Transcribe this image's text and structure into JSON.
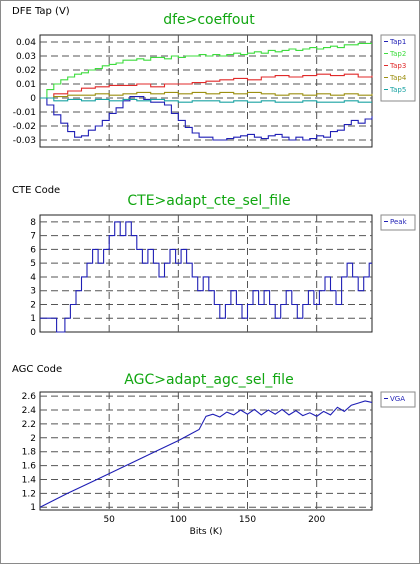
{
  "chart_data": [
    {
      "type": "line",
      "title": "dfe>coeffout",
      "ylabel": "DFE Tap (V)",
      "xlabel": "",
      "xlim": [
        0,
        240
      ],
      "ylim": [
        -0.035,
        0.045
      ],
      "yticks": [
        0.04,
        0.03,
        0.02,
        0.01,
        0,
        -0.01,
        -0.02,
        -0.03
      ],
      "ytick_labels": [
        "0.04",
        "0.03",
        "0.02",
        "0.01",
        "0",
        "-0.01",
        "-0.02",
        "-0.03"
      ],
      "grid": true,
      "step": true,
      "legend_position": "right",
      "series": [
        {
          "name": "Tap1",
          "color": "#1f1fb5",
          "x": [
            0,
            5,
            10,
            15,
            20,
            25,
            30,
            35,
            40,
            45,
            50,
            55,
            60,
            65,
            70,
            75,
            80,
            85,
            90,
            95,
            100,
            105,
            110,
            115,
            120,
            125,
            130,
            135,
            140,
            145,
            150,
            155,
            160,
            165,
            170,
            175,
            180,
            185,
            190,
            195,
            200,
            205,
            210,
            215,
            220,
            225,
            230,
            235,
            240
          ],
          "y": [
            0,
            -0.005,
            -0.012,
            -0.018,
            -0.024,
            -0.028,
            -0.027,
            -0.023,
            -0.02,
            -0.016,
            -0.011,
            -0.007,
            -0.002,
            0.001,
            0.001,
            -0.001,
            -0.003,
            -0.003,
            -0.005,
            -0.011,
            -0.016,
            -0.021,
            -0.025,
            -0.028,
            -0.028,
            -0.03,
            -0.03,
            -0.029,
            -0.028,
            -0.027,
            -0.026,
            -0.028,
            -0.029,
            -0.027,
            -0.026,
            -0.028,
            -0.03,
            -0.028,
            -0.03,
            -0.029,
            -0.027,
            -0.028,
            -0.024,
            -0.023,
            -0.019,
            -0.016,
            -0.018,
            -0.015,
            -0.013
          ]
        },
        {
          "name": "Tap2",
          "color": "#3ddc3d",
          "x": [
            0,
            5,
            10,
            15,
            20,
            25,
            30,
            35,
            40,
            45,
            50,
            55,
            60,
            65,
            70,
            75,
            80,
            85,
            90,
            95,
            100,
            105,
            110,
            115,
            120,
            125,
            130,
            135,
            140,
            145,
            150,
            155,
            160,
            165,
            170,
            175,
            180,
            185,
            190,
            195,
            200,
            205,
            210,
            215,
            220,
            225,
            230,
            235,
            240
          ],
          "y": [
            0,
            0.006,
            0.01,
            0.013,
            0.015,
            0.017,
            0.018,
            0.02,
            0.021,
            0.023,
            0.024,
            0.025,
            0.027,
            0.027,
            0.028,
            0.027,
            0.029,
            0.029,
            0.028,
            0.03,
            0.029,
            0.03,
            0.03,
            0.031,
            0.03,
            0.031,
            0.03,
            0.031,
            0.032,
            0.031,
            0.032,
            0.033,
            0.032,
            0.034,
            0.033,
            0.034,
            0.035,
            0.034,
            0.035,
            0.036,
            0.035,
            0.036,
            0.037,
            0.036,
            0.038,
            0.038,
            0.039,
            0.039,
            0.039
          ]
        },
        {
          "name": "Tap3",
          "color": "#e02a2a",
          "x": [
            0,
            10,
            20,
            30,
            40,
            50,
            60,
            70,
            80,
            90,
            100,
            110,
            120,
            130,
            140,
            150,
            160,
            170,
            180,
            190,
            200,
            210,
            220,
            230,
            240
          ],
          "y": [
            0,
            0.003,
            0.005,
            0.007,
            0.008,
            0.009,
            0.009,
            0.01,
            0.008,
            0.01,
            0.01,
            0.011,
            0.012,
            0.013,
            0.014,
            0.013,
            0.015,
            0.016,
            0.015,
            0.016,
            0.017,
            0.016,
            0.017,
            0.015,
            0.016
          ]
        },
        {
          "name": "Tap4",
          "color": "#9c8f10",
          "x": [
            0,
            10,
            20,
            30,
            40,
            50,
            60,
            70,
            80,
            90,
            100,
            110,
            120,
            130,
            140,
            150,
            160,
            170,
            180,
            190,
            200,
            210,
            220,
            230,
            240
          ],
          "y": [
            0,
            0.001,
            0.002,
            0.002,
            0.003,
            0.002,
            0.003,
            0.004,
            0.003,
            0.004,
            0.003,
            0.004,
            0.003,
            0.004,
            0.003,
            0.004,
            0.003,
            0.002,
            0.003,
            0.002,
            0.003,
            0.002,
            0.003,
            0.002,
            0.003
          ]
        },
        {
          "name": "Tap5",
          "color": "#1aa3a3",
          "x": [
            0,
            10,
            20,
            30,
            40,
            50,
            60,
            70,
            80,
            90,
            100,
            110,
            120,
            130,
            140,
            150,
            160,
            170,
            180,
            190,
            200,
            210,
            220,
            230,
            240
          ],
          "y": [
            0,
            -0.002,
            -0.001,
            -0.002,
            -0.001,
            -0.002,
            -0.001,
            -0.002,
            -0.001,
            -0.002,
            -0.003,
            -0.002,
            -0.002,
            -0.003,
            -0.002,
            -0.003,
            -0.002,
            -0.003,
            -0.003,
            -0.002,
            -0.003,
            -0.003,
            -0.002,
            -0.003,
            -0.003
          ]
        }
      ]
    },
    {
      "type": "line",
      "title": "CTE>adapt_cte_sel_file",
      "ylabel": "CTE Code",
      "xlabel": "",
      "xlim": [
        0,
        240
      ],
      "ylim": [
        0,
        8.5
      ],
      "yticks": [
        8,
        7,
        6,
        5,
        4,
        3,
        2,
        1,
        0
      ],
      "ytick_labels": [
        "8",
        "7",
        "6",
        "5",
        "4",
        "3",
        "2",
        "1",
        "0"
      ],
      "grid": true,
      "step": true,
      "legend_position": "right",
      "series": [
        {
          "name": "Peak",
          "color": "#1f1fb5",
          "x": [
            0,
            6,
            12,
            18,
            22,
            26,
            30,
            34,
            38,
            42,
            46,
            50,
            54,
            58,
            62,
            66,
            70,
            74,
            78,
            82,
            86,
            90,
            94,
            98,
            102,
            106,
            110,
            114,
            118,
            122,
            126,
            130,
            134,
            138,
            142,
            146,
            150,
            154,
            158,
            162,
            166,
            170,
            174,
            178,
            182,
            186,
            190,
            194,
            198,
            202,
            206,
            210,
            214,
            218,
            222,
            226,
            230,
            234,
            238,
            240
          ],
          "y": [
            1,
            1,
            0,
            1,
            2,
            3,
            4,
            5,
            6,
            5,
            6,
            7,
            8,
            7,
            8,
            7,
            6,
            5,
            6,
            5,
            4,
            5,
            6,
            5,
            6,
            5,
            4,
            3,
            4,
            3,
            2,
            1,
            2,
            3,
            2,
            1,
            2,
            3,
            2,
            3,
            2,
            1,
            2,
            3,
            2,
            1,
            2,
            3,
            2,
            3,
            4,
            3,
            2,
            4,
            5,
            4,
            3,
            4,
            5,
            5
          ]
        }
      ]
    },
    {
      "type": "line",
      "title": "AGC>adapt_agc_sel_file",
      "ylabel": "AGC Code",
      "xlabel": "Bits (K)",
      "xlim": [
        0,
        240
      ],
      "ylim": [
        0.96,
        2.66
      ],
      "xticks": [
        50,
        100,
        150,
        200
      ],
      "xtick_labels": [
        "50",
        "100",
        "150",
        "200"
      ],
      "yticks": [
        2.6,
        2.4,
        2.2,
        2,
        1.8,
        1.6,
        1.4,
        1.2,
        1
      ],
      "ytick_labels": [
        "2.6",
        "2.4",
        "2.2",
        "2",
        "1.8",
        "1.6",
        "1.4",
        "1.2",
        "1"
      ],
      "grid": true,
      "step": false,
      "legend_position": "right",
      "series": [
        {
          "name": "VGA",
          "color": "#1f1fb5",
          "x": [
            0,
            20,
            40,
            60,
            80,
            100,
            115,
            120,
            125,
            130,
            135,
            140,
            145,
            150,
            155,
            160,
            165,
            170,
            175,
            180,
            185,
            190,
            195,
            200,
            205,
            210,
            215,
            220,
            225,
            230,
            235,
            240
          ],
          "y": [
            1,
            1.2,
            1.39,
            1.58,
            1.77,
            1.96,
            2.12,
            2.31,
            2.34,
            2.3,
            2.37,
            2.33,
            2.4,
            2.34,
            2.41,
            2.33,
            2.4,
            2.34,
            2.41,
            2.33,
            2.39,
            2.32,
            2.36,
            2.31,
            2.38,
            2.33,
            2.44,
            2.38,
            2.47,
            2.5,
            2.53,
            2.51
          ]
        }
      ]
    }
  ]
}
